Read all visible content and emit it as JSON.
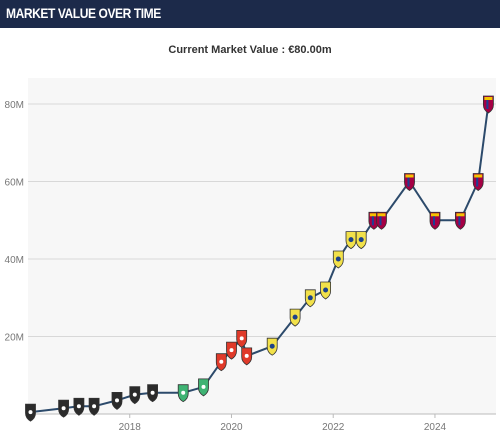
{
  "header": {
    "title": "MARKET VALUE OVER TIME"
  },
  "current_value": {
    "label": "Current Market Value : €80.00m"
  },
  "colors": {
    "header_bg": "#1c2a4a",
    "line": "#2c4a6b",
    "club_leeds": "#f2e14a",
    "club_barcelona": "#a50044",
    "club_rennes": "#e03a2a",
    "club_sporting": "#3fb373",
    "club_bournemouth": "#2b2b2b"
  },
  "chart_data": {
    "type": "line",
    "title": "Current Market Value : €80.00m",
    "xlabel": "",
    "ylabel": "",
    "xlim": [
      2016.0,
      2025.2
    ],
    "ylim": [
      0,
      80
    ],
    "y_ticks": [
      {
        "value": 20,
        "label": "20M"
      },
      {
        "value": 40,
        "label": "40M"
      },
      {
        "value": 60,
        "label": "60M"
      },
      {
        "value": 80,
        "label": "80M"
      }
    ],
    "x_ticks": [
      {
        "value": 2018,
        "label": "2018"
      },
      {
        "value": 2020,
        "label": "2020"
      },
      {
        "value": 2022,
        "label": "2022"
      },
      {
        "value": 2024,
        "label": "2024"
      }
    ],
    "grid": true,
    "legend": "none",
    "series": [
      {
        "points": [
          {
            "x": 2016.05,
            "y": 0.5,
            "club": "bournemouth"
          },
          {
            "x": 2016.7,
            "y": 1.5,
            "club": "bournemouth"
          },
          {
            "x": 2017.0,
            "y": 2.0,
            "club": "bournemouth"
          },
          {
            "x": 2017.3,
            "y": 2.0,
            "club": "bournemouth"
          },
          {
            "x": 2017.75,
            "y": 3.5,
            "club": "bournemouth"
          },
          {
            "x": 2018.1,
            "y": 5.0,
            "club": "bournemouth"
          },
          {
            "x": 2018.45,
            "y": 5.5,
            "club": "bournemouth"
          },
          {
            "x": 2019.05,
            "y": 5.5,
            "club": "sporting"
          },
          {
            "x": 2019.45,
            "y": 7.0,
            "club": "sporting"
          },
          {
            "x": 2019.8,
            "y": 13.5,
            "club": "rennes"
          },
          {
            "x": 2020.0,
            "y": 16.5,
            "club": "rennes"
          },
          {
            "x": 2020.2,
            "y": 19.5,
            "club": "rennes"
          },
          {
            "x": 2020.3,
            "y": 15.0,
            "club": "rennes"
          },
          {
            "x": 2020.8,
            "y": 17.5,
            "club": "leeds"
          },
          {
            "x": 2021.25,
            "y": 25.0,
            "club": "leeds"
          },
          {
            "x": 2021.55,
            "y": 30.0,
            "club": "leeds"
          },
          {
            "x": 2021.85,
            "y": 32.0,
            "club": "leeds"
          },
          {
            "x": 2022.1,
            "y": 40.0,
            "club": "leeds"
          },
          {
            "x": 2022.35,
            "y": 45.0,
            "club": "leeds"
          },
          {
            "x": 2022.55,
            "y": 45.0,
            "club": "leeds"
          },
          {
            "x": 2022.8,
            "y": 50.0,
            "club": "barcelona"
          },
          {
            "x": 2022.95,
            "y": 50.0,
            "club": "barcelona"
          },
          {
            "x": 2023.5,
            "y": 60.0,
            "club": "barcelona"
          },
          {
            "x": 2024.0,
            "y": 50.0,
            "club": "barcelona"
          },
          {
            "x": 2024.5,
            "y": 50.0,
            "club": "barcelona"
          },
          {
            "x": 2024.85,
            "y": 60.0,
            "club": "barcelona"
          },
          {
            "x": 2025.05,
            "y": 80.0,
            "club": "barcelona"
          }
        ]
      }
    ]
  }
}
